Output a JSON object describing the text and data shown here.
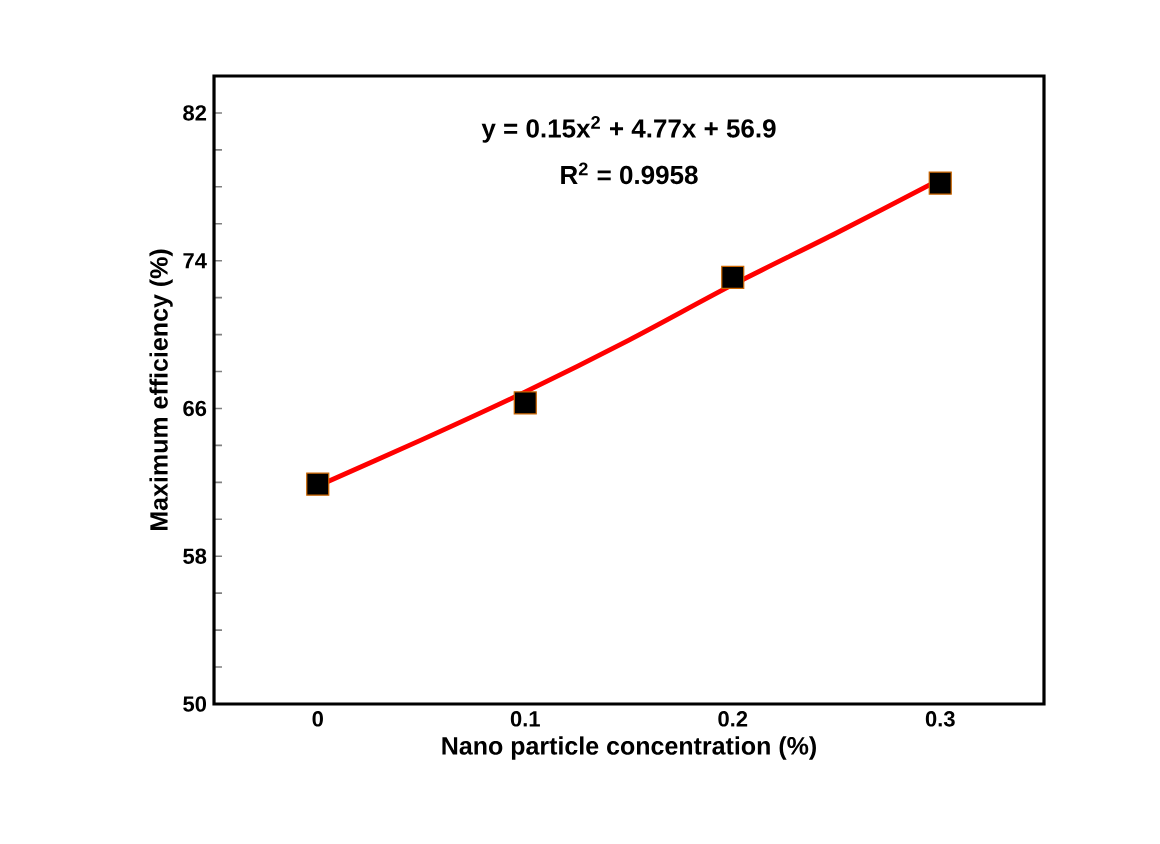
{
  "chart_data": {
    "type": "scatter",
    "xlabel": "Nano particle concentration (%)",
    "ylabel": "Maximum efficiency (%)",
    "x": [
      0,
      0.1,
      0.2,
      0.3
    ],
    "series": [
      {
        "color": "#000000",
        "marker": "square",
        "values": [
          61.9,
          66.3,
          73.1,
          78.2
        ]
      },
      {
        "type": "line",
        "color": "#ff0000",
        "x": [
          0,
          0.05,
          0.1,
          0.15,
          0.2,
          0.25,
          0.3
        ],
        "values": [
          61.8,
          64.3,
          66.9,
          69.7,
          72.7,
          75.5,
          78.4
        ]
      }
    ],
    "xlim": [
      -0.05,
      0.35
    ],
    "xticks": [
      {
        "value": 0,
        "label": "0"
      },
      {
        "value": 0.1,
        "label": "0.1"
      },
      {
        "value": 0.2,
        "label": "0.2"
      },
      {
        "value": 0.3,
        "label": "0.3"
      }
    ],
    "ylim": [
      50,
      84
    ],
    "yticks": [
      50,
      58,
      66,
      74,
      82
    ],
    "grid": false,
    "annotations": [
      "y = 0.15x$^{2}$ + 4.77x + 56.9",
      "R$^{2}$ = 0.9958"
    ]
  }
}
